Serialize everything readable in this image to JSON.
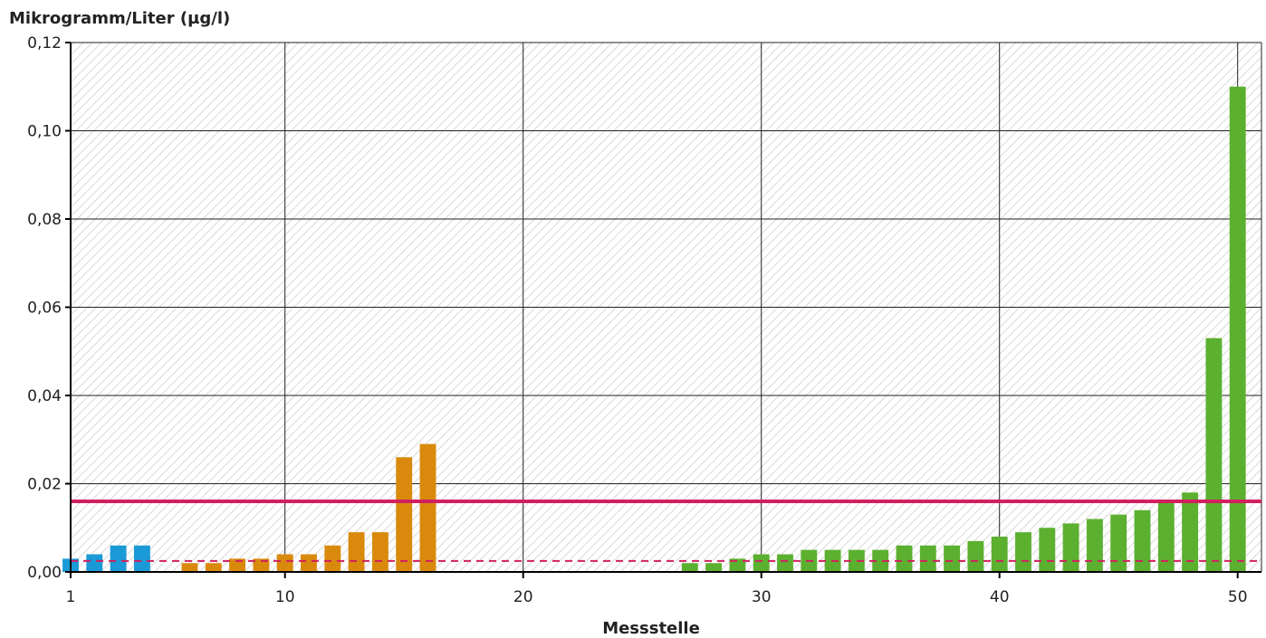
{
  "chart_data": {
    "type": "bar",
    "title": "",
    "ylabel": "Mikrogramm/Liter (µg/l)",
    "xlabel": "Messstelle",
    "xlim": [
      1,
      51
    ],
    "ylim": [
      0,
      0.12
    ],
    "x_ticks": [
      1,
      10,
      20,
      30,
      40,
      50
    ],
    "y_ticks": [
      0,
      0.02,
      0.04,
      0.06,
      0.08,
      0.1,
      0.12
    ],
    "y_tick_labels": [
      "0,00",
      "0,02",
      "0,04",
      "0,06",
      "0,08",
      "0,10",
      "0,12"
    ],
    "grid": true,
    "background": "hatched-grey",
    "series": [
      {
        "color": "#1a9ad6",
        "x": [
          1,
          2,
          3,
          4
        ],
        "values": [
          0.003,
          0.004,
          0.006,
          0.006
        ]
      },
      {
        "color": "#d98a0c",
        "x": [
          6,
          7,
          8,
          9,
          10,
          11,
          12,
          13,
          14,
          15,
          16
        ],
        "values": [
          0.002,
          0.002,
          0.003,
          0.003,
          0.004,
          0.004,
          0.006,
          0.009,
          0.009,
          0.026,
          0.029
        ]
      },
      {
        "color": "#5cb030",
        "x": [
          27,
          28,
          29,
          30,
          31,
          32,
          33,
          34,
          35,
          36,
          37,
          38,
          39,
          40,
          41,
          42,
          43,
          44,
          45,
          46,
          47,
          48,
          49,
          50
        ],
        "values": [
          0.002,
          0.002,
          0.003,
          0.004,
          0.004,
          0.005,
          0.005,
          0.005,
          0.005,
          0.006,
          0.006,
          0.006,
          0.007,
          0.008,
          0.009,
          0.01,
          0.011,
          0.012,
          0.013,
          0.014,
          0.016,
          0.018,
          0.053,
          0.11
        ]
      }
    ],
    "reference_lines": [
      {
        "value": 0.016,
        "style": "solid",
        "color": "#d21f5f"
      },
      {
        "value": 0.0025,
        "style": "dashed",
        "color": "#d21f5f"
      }
    ]
  }
}
